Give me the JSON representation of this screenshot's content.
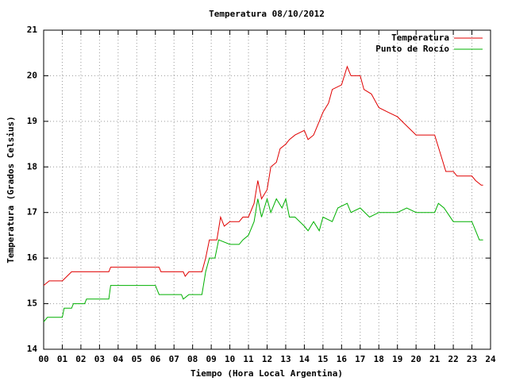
{
  "chart_data": {
    "type": "line",
    "title": "Temperatura 08/10/2012",
    "x_label": "Tiempo (Hora Local Argentina)",
    "y_label": "Temperatura (Grados Celsius)",
    "xlim": [
      0,
      24
    ],
    "ylim": [
      14,
      21
    ],
    "xticks": [
      {
        "value": 0,
        "label": "00"
      },
      {
        "value": 1,
        "label": "01"
      },
      {
        "value": 2,
        "label": "02"
      },
      {
        "value": 3,
        "label": "03"
      },
      {
        "value": 4,
        "label": "04"
      },
      {
        "value": 5,
        "label": "05"
      },
      {
        "value": 6,
        "label": "06"
      },
      {
        "value": 7,
        "label": "07"
      },
      {
        "value": 8,
        "label": "08"
      },
      {
        "value": 9,
        "label": "09"
      },
      10,
      11,
      12,
      13,
      14,
      15,
      16,
      17,
      18,
      19,
      20,
      21,
      22,
      23,
      24
    ],
    "yticks": [
      14,
      15,
      16,
      17,
      18,
      19,
      20,
      21
    ],
    "grid": true,
    "legend": "top-right",
    "series": [
      {
        "name": "Temperatura",
        "color": "#e00000",
        "x": [
          0.0,
          0.3,
          1.0,
          1.5,
          3.5,
          3.6,
          6.2,
          6.3,
          7.5,
          7.6,
          7.8,
          8.5,
          8.7,
          8.9,
          9.3,
          9.5,
          9.7,
          10.0,
          10.5,
          10.7,
          11.0,
          11.3,
          11.5,
          11.7,
          12.0,
          12.2,
          12.5,
          12.7,
          13.0,
          13.2,
          13.5,
          14.0,
          14.2,
          14.5,
          14.8,
          15.0,
          15.3,
          15.5,
          16.0,
          16.3,
          16.5,
          17.0,
          17.2,
          17.6,
          18.0,
          18.5,
          19.0,
          19.5,
          20.0,
          21.0,
          21.3,
          21.6,
          22.0,
          22.2,
          23.0,
          23.2,
          23.5,
          23.6
        ],
        "values": [
          15.4,
          15.5,
          15.5,
          15.7,
          15.7,
          15.8,
          15.8,
          15.7,
          15.7,
          15.6,
          15.7,
          15.7,
          16.0,
          16.4,
          16.4,
          16.9,
          16.7,
          16.8,
          16.8,
          16.9,
          16.9,
          17.2,
          17.7,
          17.3,
          17.5,
          18.0,
          18.1,
          18.4,
          18.5,
          18.6,
          18.7,
          18.8,
          18.6,
          18.7,
          19.0,
          19.2,
          19.4,
          19.7,
          19.8,
          20.2,
          20.0,
          20.0,
          19.7,
          19.6,
          19.3,
          19.2,
          19.1,
          18.9,
          18.7,
          18.7,
          18.3,
          17.9,
          17.9,
          17.8,
          17.8,
          17.7,
          17.6,
          17.6
        ]
      },
      {
        "name": "Punto de Rocío",
        "color": "#00b000",
        "x": [
          0.0,
          0.2,
          1.0,
          1.1,
          1.5,
          1.6,
          2.2,
          2.3,
          3.5,
          3.6,
          6.0,
          6.2,
          7.4,
          7.5,
          7.8,
          8.5,
          8.7,
          8.9,
          9.2,
          9.4,
          10.0,
          10.5,
          10.7,
          11.0,
          11.3,
          11.5,
          11.7,
          12.0,
          12.2,
          12.5,
          12.8,
          13.0,
          13.2,
          13.5,
          14.0,
          14.2,
          14.5,
          14.8,
          15.0,
          15.5,
          15.8,
          16.3,
          16.5,
          17.0,
          17.5,
          18.0,
          19.0,
          19.5,
          20.0,
          21.0,
          21.2,
          21.5,
          22.0,
          23.0,
          23.2,
          23.4,
          23.6
        ],
        "values": [
          14.6,
          14.7,
          14.7,
          14.9,
          14.9,
          15.0,
          15.0,
          15.1,
          15.1,
          15.4,
          15.4,
          15.2,
          15.2,
          15.1,
          15.2,
          15.2,
          15.7,
          16.0,
          16.0,
          16.4,
          16.3,
          16.3,
          16.4,
          16.5,
          16.8,
          17.3,
          16.9,
          17.3,
          17.0,
          17.3,
          17.1,
          17.3,
          16.9,
          16.9,
          16.7,
          16.6,
          16.8,
          16.6,
          16.9,
          16.8,
          17.1,
          17.2,
          17.0,
          17.1,
          16.9,
          17.0,
          17.0,
          17.1,
          17.0,
          17.0,
          17.2,
          17.1,
          16.8,
          16.8,
          16.6,
          16.4,
          16.4
        ]
      }
    ]
  }
}
